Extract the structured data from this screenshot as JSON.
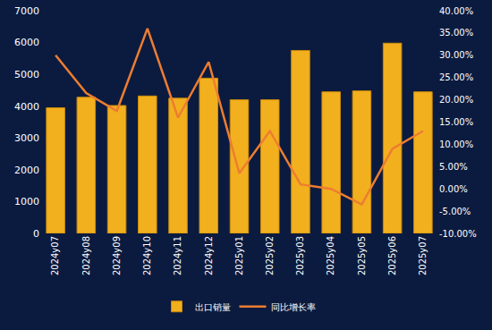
{
  "chart_data": {
    "type": "bar",
    "categories": [
      "2024y07",
      "2024y08",
      "2024y09",
      "2024y10",
      "2024y11",
      "2024y12",
      "2025y01",
      "2025y02",
      "2025y03",
      "2025y04",
      "2025y05",
      "2025y06",
      "2025y07"
    ],
    "series": [
      {
        "name": "出口销量",
        "type": "bar",
        "color": "#f2b01e",
        "values": [
          3950,
          4280,
          4020,
          4320,
          4250,
          4880,
          4200,
          4200,
          5750,
          4450,
          4480,
          5980,
          4450
        ]
      },
      {
        "name": "同比增长率",
        "type": "line",
        "axis": "y2",
        "color": "#ed7d31",
        "values": [
          30,
          21.5,
          17.5,
          36,
          16,
          28.5,
          3.5,
          13,
          1,
          0,
          -3.5,
          9,
          13
        ]
      }
    ],
    "ylim": [
      0,
      7000
    ],
    "yticks": [
      0,
      1000,
      2000,
      3000,
      4000,
      5000,
      6000,
      7000
    ],
    "y2lim": [
      -10,
      40
    ],
    "y2ticks": [
      {
        "value": -10,
        "label": "-10.00%"
      },
      {
        "value": -5,
        "label": "-5.00%"
      },
      {
        "value": 0,
        "label": "0.00%"
      },
      {
        "value": 5,
        "label": "5.00%"
      },
      {
        "value": 10,
        "label": "10.00%"
      },
      {
        "value": 15,
        "label": "15.00%"
      },
      {
        "value": 20,
        "label": "20.00%"
      },
      {
        "value": 25,
        "label": "25.00%"
      },
      {
        "value": 30,
        "label": "30.00%"
      },
      {
        "value": 35,
        "label": "35.00%"
      },
      {
        "value": 40,
        "label": "40.00%"
      }
    ],
    "grid": false,
    "legend": "bottom"
  }
}
